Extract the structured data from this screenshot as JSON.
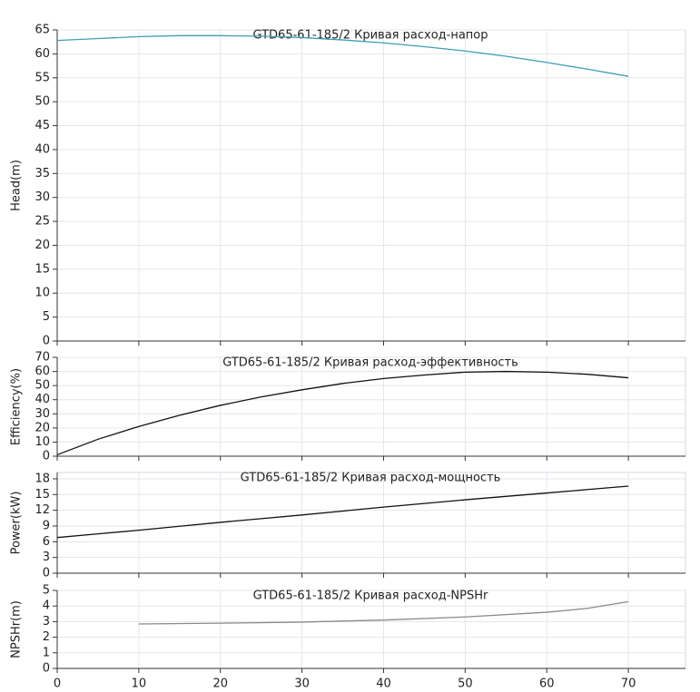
{
  "chart_data": [
    {
      "type": "line",
      "title": "GTD65-61-185/2 Кривая расход-напор",
      "y_label": "Head(m)",
      "xlim": [
        0,
        77
      ],
      "xticks": [
        0,
        10,
        20,
        30,
        40,
        50,
        60,
        70
      ],
      "ylim": [
        0,
        65
      ],
      "yticks": [
        0,
        5,
        10,
        15,
        20,
        25,
        30,
        35,
        40,
        45,
        50,
        55,
        60,
        65
      ],
      "grid": true,
      "x": [
        0,
        5,
        10,
        15,
        20,
        25,
        30,
        35,
        40,
        45,
        50,
        55,
        60,
        65,
        70
      ],
      "series": [
        {
          "color": "#3f9db3",
          "values": [
            62.8,
            63.2,
            63.6,
            63.8,
            63.8,
            63.7,
            63.4,
            62.9,
            62.3,
            61.5,
            60.6,
            59.5,
            58.2,
            56.8,
            55.3
          ]
        }
      ]
    },
    {
      "type": "line",
      "title": "GTD65-61-185/2 Кривая расход-эффективность",
      "y_label": "Efficiency(%)",
      "xlim": [
        0,
        77
      ],
      "xticks": [
        0,
        10,
        20,
        30,
        40,
        50,
        60,
        70
      ],
      "ylim": [
        0,
        70
      ],
      "yticks": [
        0,
        10,
        20,
        30,
        40,
        50,
        60,
        70
      ],
      "grid": true,
      "x": [
        0,
        5,
        10,
        15,
        20,
        25,
        30,
        35,
        40,
        45,
        50,
        55,
        60,
        65,
        70
      ],
      "series": [
        {
          "color": "#111111",
          "values": [
            1,
            12,
            21,
            29,
            36,
            42,
            47,
            51.5,
            55,
            57.5,
            59.5,
            60,
            59.5,
            58,
            55.5
          ]
        }
      ]
    },
    {
      "type": "line",
      "title": "GTD65-61-185/2 Кривая расход-мощность",
      "y_label": "Power(kW)",
      "xlim": [
        0,
        77
      ],
      "xticks": [
        0,
        10,
        20,
        30,
        40,
        50,
        60,
        70
      ],
      "ylim": [
        0,
        19.2
      ],
      "yticks": [
        0,
        3,
        6,
        9,
        12,
        15,
        18
      ],
      "grid": true,
      "x": [
        0,
        5,
        10,
        15,
        20,
        25,
        30,
        35,
        40,
        45,
        50,
        55,
        60,
        65,
        70
      ],
      "series": [
        {
          "color": "#111111",
          "values": [
            6.8,
            7.5,
            8.2,
            8.95,
            9.7,
            10.4,
            11.1,
            11.85,
            12.6,
            13.3,
            14.0,
            14.65,
            15.3,
            15.95,
            16.6
          ]
        }
      ]
    },
    {
      "type": "line",
      "title": "GTD65-61-185/2 Кривая расход-NPSHr",
      "y_label": "NPSHr(m)",
      "xlim": [
        0,
        77
      ],
      "xticks": [
        0,
        10,
        20,
        30,
        40,
        50,
        60,
        70
      ],
      "show_xtick_labels": true,
      "ylim": [
        0,
        5
      ],
      "yticks": [
        0,
        1,
        2,
        3,
        4,
        5
      ],
      "grid": true,
      "x": [
        10,
        20,
        30,
        40,
        50,
        60,
        65,
        70
      ],
      "series": [
        {
          "color": "#8a8a8a",
          "values": [
            2.85,
            2.9,
            2.97,
            3.1,
            3.3,
            3.6,
            3.85,
            4.28
          ]
        }
      ]
    }
  ]
}
